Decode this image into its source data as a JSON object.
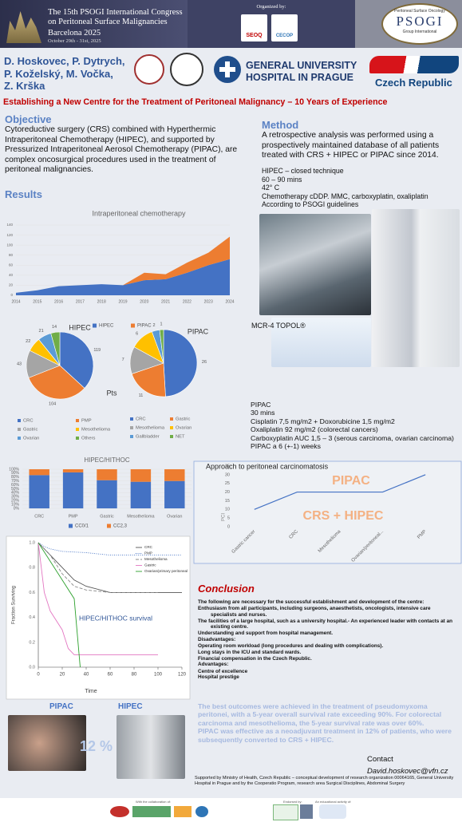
{
  "header": {
    "congress": [
      "The 15th PSOGI International Congress",
      "on Peritoneal Surface Malignancies"
    ],
    "city": "Barcelona 2025",
    "dates": "October 29th - 31st, 2025",
    "organized_by": "Organized by:",
    "organizers": [
      "SEOQ",
      "CECOP"
    ],
    "psogi": {
      "top": "Peritoneal Surface Oncology",
      "name": "PSOGI",
      "bottom": "Group International"
    }
  },
  "authors": [
    "D. Hoskovec, P. Dytrych,",
    "P. Koželský, M. Vočka,",
    "Z. Krška"
  ],
  "hospital": [
    "GENERAL UNIVERSITY",
    "HOSPITAL IN PRAGUE"
  ],
  "country": "Czech Republic",
  "title": "Establishing a New Centre for the Treatment of Peritoneal Malignancy – 10 Years of Experience",
  "objective": {
    "heading": "Objective",
    "text": "Cytoreductive surgery (CRS) combined with Hyperthermic Intraperitoneal Chemotherapy (HIPEC), and supported by Pressurized Intraperitoneal Aerosol Chemotherapy (PIPAC), are complex oncosurgical procedures used in the treatment of peritoneal malignancies."
  },
  "results": {
    "heading": "Results"
  },
  "method": {
    "heading": "Method",
    "text": "A retrospective analysis was performed using a prospectively maintained database of all patients treated with CRS + HIPEC or PIPAC since 2014.",
    "hipec": [
      "HIPEC – closed technique",
      "60 – 90 mins",
      "42° C",
      "Chemotherapy cDDP. MMC, carboxyplatin, oxaliplatin",
      "According to PSOGI guidelines"
    ],
    "device": "MCR-4 TOPOL®",
    "pipac": [
      "PIPAC",
      "30 mins",
      "Cisplatin 7,5 mg/m2 + Doxorubicine 1,5 mg/m2",
      "Oxaliplatin 92 mg/m2 (colorectal cancers)",
      "Carboxyplatin AUC 1,5 – 3 (serous carcinoma, ovarian carcinoma)",
      "PIPAC a 6 (+-1) weeks"
    ]
  },
  "chart_data": [
    {
      "type": "area",
      "title": "Intraperitoneal chemotherapy",
      "stacked": true,
      "legend": "bottom",
      "categories": [
        "2014",
        "2015",
        "2016",
        "2017",
        "2018",
        "2019",
        "2020",
        "2021",
        "2022",
        "2023",
        "2024"
      ],
      "series": [
        {
          "name": "HIPEC",
          "color": "#4472c4",
          "values": [
            5,
            10,
            18,
            20,
            22,
            20,
            30,
            32,
            45,
            60,
            72
          ]
        },
        {
          "name": "PIPAC",
          "color": "#ed7d31",
          "values": [
            0,
            0,
            0,
            0,
            0,
            0,
            15,
            10,
            20,
            25,
            45
          ]
        }
      ],
      "ylim": [
        0,
        140
      ],
      "yticks": [
        0,
        20,
        40,
        60,
        80,
        100,
        120,
        140
      ]
    },
    {
      "type": "pie",
      "title": "HIPEC",
      "annotation": "Pts",
      "categories": [
        "CRC",
        "PMP",
        "Gastric",
        "Mesothelioma",
        "Ovarian",
        "Others"
      ],
      "values": [
        119,
        104,
        43,
        22,
        21,
        14
      ],
      "colors": [
        "#4472c4",
        "#ed7d31",
        "#a5a5a5",
        "#ffc000",
        "#5b9bd5",
        "#70ad47"
      ]
    },
    {
      "type": "pie",
      "title": "PIPAC",
      "categories": [
        "CRC",
        "Gastric",
        "Mesothelioma",
        "Ovarian",
        "Gallbladder",
        "NET"
      ],
      "values": [
        26,
        11,
        7,
        6,
        2,
        1
      ],
      "colors": [
        "#4472c4",
        "#ed7d31",
        "#a5a5a5",
        "#ffc000",
        "#5b9bd5",
        "#70ad47"
      ]
    },
    {
      "type": "bar",
      "title": "HIPEC/HITHOC",
      "stacked": true,
      "legend": "bottom",
      "categories": [
        "CRC",
        "PMP",
        "Gastric",
        "Mesothelioma",
        "Ovarian"
      ],
      "series": [
        {
          "name": "CC0/1",
          "color": "#4472c4",
          "values": [
            85,
            92,
            72,
            68,
            70
          ]
        },
        {
          "name": "CC2,3",
          "color": "#ed7d31",
          "values": [
            15,
            8,
            28,
            32,
            30
          ]
        }
      ],
      "ylim": [
        0,
        100
      ],
      "yticks": [
        {
          "value": 0,
          "label": "0%"
        },
        {
          "value": 10,
          "label": "10%"
        },
        {
          "value": 20,
          "label": "20%"
        },
        {
          "value": 30,
          "label": "30%"
        },
        {
          "value": 40,
          "label": "40%"
        },
        {
          "value": 50,
          "label": "50%"
        },
        {
          "value": 60,
          "label": "60%"
        },
        {
          "value": 70,
          "label": "70%"
        },
        {
          "value": 80,
          "label": "80%"
        },
        {
          "value": 90,
          "label": "90%"
        },
        {
          "value": 100,
          "label": "100%"
        }
      ]
    },
    {
      "type": "line",
      "title": "Approach to peritoneal carcinomatosis",
      "y_label": "PCI",
      "color": "#4472c4",
      "categories": [
        "Gastric cancer",
        "CRC",
        "Mesothelioma",
        "Ovarian/peritoneal...",
        "PMP"
      ],
      "values": [
        10,
        20,
        20,
        20,
        30
      ],
      "ylim": [
        0,
        35
      ],
      "yticks": [
        0,
        5,
        10,
        15,
        20,
        25,
        30,
        35
      ],
      "annotations": [
        {
          "text": "PIPAC",
          "color": "#f4b183"
        },
        {
          "text": "CRS + HIPEC",
          "color": "#f4b183"
        }
      ]
    },
    {
      "type": "line",
      "title": "HIPEC/HITHOC survival",
      "x_label": "Time",
      "y_label": "Fraction Surviving",
      "series": [
        {
          "name": "CRC",
          "color": "#555555",
          "dash": "solid",
          "x": [
            0,
            10,
            20,
            30,
            40,
            60,
            80,
            100,
            120
          ],
          "values": [
            1,
            0.9,
            0.8,
            0.7,
            0.65,
            0.6,
            0.6,
            0.6,
            0.6
          ]
        },
        {
          "name": "PMP",
          "color": "#4472c4",
          "dash": "dotted",
          "x": [
            0,
            5,
            10,
            20,
            40,
            60,
            80,
            100,
            120
          ],
          "values": [
            1,
            0.97,
            0.95,
            0.93,
            0.92,
            0.9,
            0.9,
            0.9,
            0.9
          ]
        },
        {
          "name": "Mesothelioma",
          "color": "#888888",
          "dash": "dashed",
          "x": [
            0,
            10,
            20,
            30,
            40,
            60,
            80,
            100
          ],
          "values": [
            1,
            0.9,
            0.75,
            0.65,
            0.62,
            0.6,
            0.6,
            0.6
          ]
        },
        {
          "name": "Gastric",
          "color": "#e377c2",
          "dash": "solid",
          "x": [
            0,
            5,
            10,
            20,
            25,
            30,
            100
          ],
          "values": [
            1,
            0.6,
            0.45,
            0.3,
            0.15,
            0.1,
            0.1
          ]
        },
        {
          "name": "Ovarian/primary peritoneal",
          "color": "#2ca02c",
          "dash": "solid",
          "x": [
            0,
            10,
            20,
            30,
            35
          ],
          "values": [
            1,
            0.85,
            0.7,
            0.55,
            0
          ]
        }
      ],
      "xlim": [
        0,
        120
      ],
      "xticks": [
        0,
        20,
        40,
        60,
        80,
        100,
        120
      ],
      "ylim": [
        0,
        1
      ],
      "yticks": [
        {
          "value": 0,
          "label": "0.0"
        },
        0.2,
        0.4,
        0.6,
        0.8,
        {
          "value": 1,
          "label": "1.0"
        }
      ]
    }
  ],
  "conversion": {
    "from": "PIPAC",
    "to": "HIPEC",
    "rate": "12 %"
  },
  "conclusion": {
    "heading": "Conclusion",
    "intro": "The following are necessary for the successful establishment and development of the centre:",
    "requirements": [
      "Enthusiasm from all participants, including surgeons, anaesthetists, oncologists, intensive care specialists and nurses.",
      "The facilities of a large hospital, such as a university hospital.- An experienced leader with contacts at an existing centre.",
      "Understanding and support from hospital management."
    ],
    "disadvantages_heading": "Disadvantages:",
    "disadvantages": [
      "Operating room workload (long procedures and dealing with complications).",
      "Long stays in the ICU and standard wards.",
      "Financial compensation in the Czech Republic."
    ],
    "advantages_heading": "Advantages:",
    "advantages": [
      "Centre of excellence",
      "Hospital prestige"
    ]
  },
  "findings": [
    "The best outcomes were achieved in the treatment of pseudomyxoma peritonei, with a 5-year overall survival rate exceeding 90%. For colorectal carcinoma and mesothelioma, the 5-year survival rate was over 60%.",
    "PIPAC was effective as a neoadjuvant treatment in 12% of patients, who were subsequently converted to CRS + HIPEC."
  ],
  "contact": {
    "label": "Contact",
    "email": "David.hoskovec@vfn.cz"
  },
  "support": "Supported by Ministry of Health, Czech Republic – conceptual development of research organization 00064165, General University Hospital in Prague and by the Cooperatio Program, research area Surgical Disciplines, Abdominal Surgery",
  "footer": [
    "With the collaboration of:",
    "Endorsed by:",
    "An educational activity of:"
  ]
}
